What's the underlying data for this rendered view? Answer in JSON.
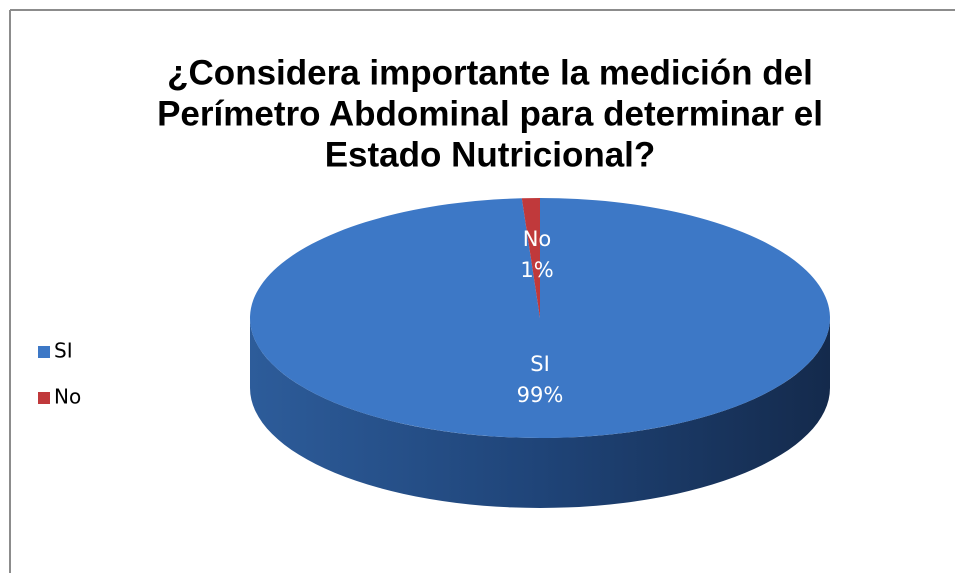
{
  "chart_data": {
    "type": "pie",
    "title_lines": [
      "¿Considera importante la medición del",
      "Perímetro Abdominal para determinar el",
      "Estado Nutricional?"
    ],
    "categories": [
      "SI",
      "No"
    ],
    "values": [
      99,
      1
    ],
    "value_labels": [
      "99%",
      "1%"
    ],
    "colors": [
      "#3d78c6",
      "#c0393b"
    ],
    "legend": "left"
  }
}
